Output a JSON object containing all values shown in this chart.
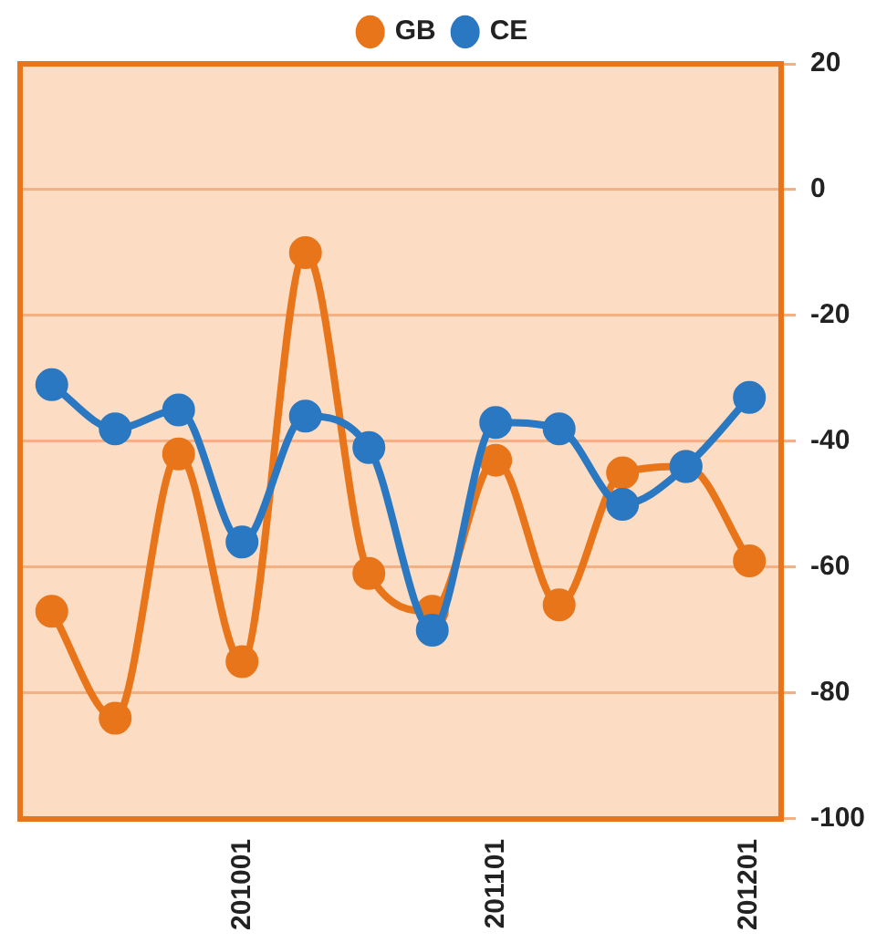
{
  "chart_data": {
    "type": "line",
    "categories": [
      null,
      null,
      null,
      "201001",
      null,
      null,
      null,
      "201101",
      null,
      null,
      null,
      "201201"
    ],
    "series": [
      {
        "name": "GB",
        "color": "#e8751a",
        "values": [
          -67,
          -84,
          -42,
          -75,
          -10,
          -61,
          -67,
          -43,
          -66,
          -45,
          -44,
          -59
        ]
      },
      {
        "name": "CE",
        "color": "#2a78c2",
        "values": [
          -31,
          -38,
          -35,
          -56,
          -36,
          -41,
          -70,
          -37,
          -38,
          -50,
          -44,
          -33
        ]
      }
    ],
    "ylim": [
      -100,
      20
    ],
    "yticks": [
      -100,
      -80,
      -60,
      -40,
      -20,
      0,
      20
    ],
    "grid": "y",
    "legend": "top",
    "marker": "circle",
    "line_style": "solid"
  }
}
